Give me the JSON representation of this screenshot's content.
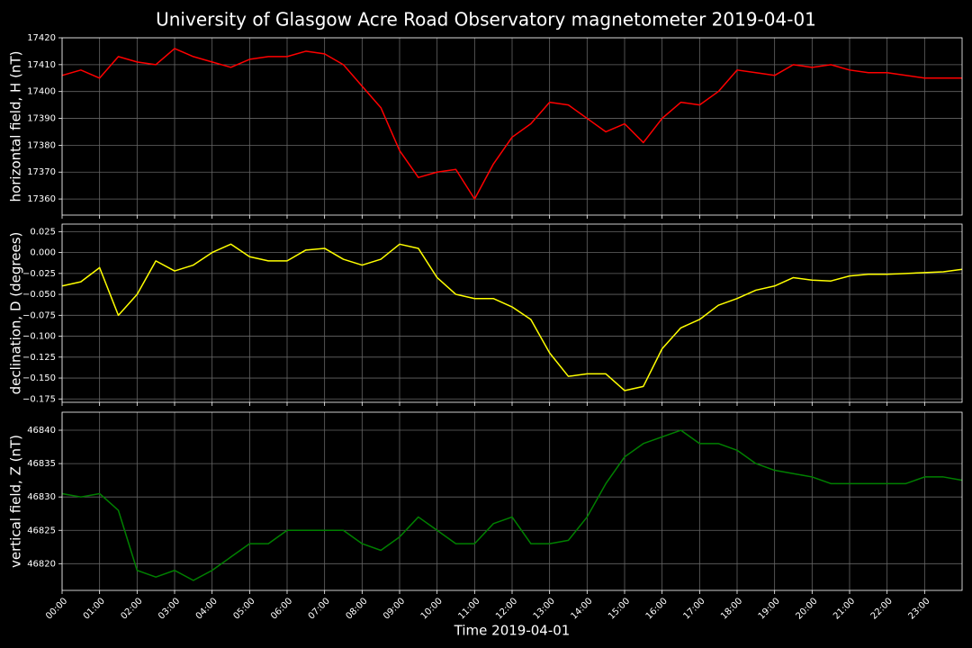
{
  "title": "University of Glasgow Acre Road Observatory magnetometer 2019-04-01",
  "chart_data": [
    {
      "type": "line",
      "ylabel": "horizontal field, H (nT)",
      "color": "#ff0000",
      "grid": true,
      "x": [
        0,
        0.5,
        1,
        1.5,
        2,
        2.5,
        3,
        3.5,
        4,
        4.5,
        5,
        5.5,
        6,
        6.5,
        7,
        7.5,
        8,
        8.5,
        9,
        9.5,
        10,
        10.5,
        11,
        11.5,
        12,
        12.5,
        13,
        13.5,
        14,
        14.5,
        15,
        15.5,
        16,
        16.5,
        17,
        17.5,
        18,
        18.5,
        19,
        19.5,
        20,
        20.5,
        21,
        21.5,
        22,
        22.5,
        23,
        23.5,
        24
      ],
      "values": [
        17406,
        17408,
        17405,
        17413,
        17411,
        17410,
        17416,
        17413,
        17411,
        17409,
        17412,
        17413,
        17413,
        17415,
        17414,
        17410,
        17402,
        17394,
        17378,
        17368,
        17370,
        17371,
        17360,
        17373,
        17383,
        17388,
        17396,
        17395,
        17390,
        17385,
        17388,
        17381,
        17390,
        17396,
        17395,
        17400,
        17408,
        17407,
        17406,
        17410,
        17409,
        17410,
        17408,
        17407,
        17407,
        17406,
        17405,
        17405,
        17405
      ],
      "xlim": [
        0,
        24
      ],
      "xticks": [
        0,
        1,
        2,
        3,
        4,
        5,
        6,
        7,
        8,
        9,
        10,
        11,
        12,
        13,
        14,
        15,
        16,
        17,
        18,
        19,
        20,
        21,
        22,
        23
      ],
      "ylim": [
        17354,
        17420
      ],
      "yticks": [
        17360,
        17370,
        17380,
        17390,
        17400,
        17410,
        17420
      ]
    },
    {
      "type": "line",
      "ylabel": "declination, D (degrees)",
      "color": "#ffff00",
      "grid": true,
      "x": [
        0,
        0.5,
        1,
        1.5,
        2,
        2.5,
        3,
        3.5,
        4,
        4.5,
        5,
        5.5,
        6,
        6.5,
        7,
        7.5,
        8,
        8.5,
        9,
        9.5,
        10,
        10.5,
        11,
        11.5,
        12,
        12.5,
        13,
        13.5,
        14,
        14.5,
        15,
        15.5,
        16,
        16.5,
        17,
        17.5,
        18,
        18.5,
        19,
        19.5,
        20,
        20.5,
        21,
        21.5,
        22,
        22.5,
        23,
        23.5,
        24
      ],
      "values": [
        -0.04,
        -0.035,
        -0.018,
        -0.075,
        -0.05,
        -0.01,
        -0.022,
        -0.015,
        0.0,
        0.01,
        -0.005,
        -0.01,
        -0.01,
        0.003,
        0.005,
        -0.008,
        -0.015,
        -0.008,
        0.01,
        0.005,
        -0.03,
        -0.05,
        -0.055,
        -0.055,
        -0.065,
        -0.08,
        -0.12,
        -0.148,
        -0.145,
        -0.145,
        -0.165,
        -0.16,
        -0.115,
        -0.09,
        -0.08,
        -0.063,
        -0.055,
        -0.045,
        -0.04,
        -0.03,
        -0.033,
        -0.034,
        -0.028,
        -0.026,
        -0.026,
        -0.025,
        -0.024,
        -0.023,
        -0.02
      ],
      "xlim": [
        0,
        24
      ],
      "xticks": [
        0,
        1,
        2,
        3,
        4,
        5,
        6,
        7,
        8,
        9,
        10,
        11,
        12,
        13,
        14,
        15,
        16,
        17,
        18,
        19,
        20,
        21,
        22,
        23
      ],
      "ylim": [
        -0.179,
        0.034
      ],
      "yticks": [
        0.025,
        {
          "value": 0,
          "label": "0.000"
        },
        {
          "value": -0.025,
          "label": "−0.025"
        },
        {
          "value": -0.05,
          "label": "−0.050"
        },
        {
          "value": -0.075,
          "label": "−0.075"
        },
        {
          "value": -0.1,
          "label": "−0.100"
        },
        {
          "value": -0.125,
          "label": "−0.125"
        },
        {
          "value": -0.15,
          "label": "−0.150"
        },
        {
          "value": -0.175,
          "label": "−0.175"
        }
      ]
    },
    {
      "type": "line",
      "ylabel": "vertical field, Z (nT)",
      "xlabel": "Time 2019-04-01",
      "color": "#008000",
      "grid": true,
      "x": [
        0,
        0.5,
        1,
        1.5,
        2,
        2.5,
        3,
        3.5,
        4,
        4.5,
        5,
        5.5,
        6,
        6.5,
        7,
        7.5,
        8,
        8.5,
        9,
        9.5,
        10,
        10.5,
        11,
        11.5,
        12,
        12.5,
        13,
        13.5,
        14,
        14.5,
        15,
        15.5,
        16,
        16.5,
        17,
        17.5,
        18,
        18.5,
        19,
        19.5,
        20,
        20.5,
        21,
        21.5,
        22,
        22.5,
        23,
        23.5,
        24
      ],
      "values": [
        46830.5,
        46830,
        46830.5,
        46828,
        46819,
        46818,
        46819,
        46817.5,
        46819,
        46821,
        46823,
        46823,
        46825,
        46825,
        46825,
        46825,
        46823,
        46822,
        46824,
        46827,
        46825,
        46823,
        46823,
        46826,
        46827,
        46823,
        46823,
        46823.5,
        46827,
        46832,
        46836,
        46838,
        46839,
        46840,
        46838,
        46838,
        46837,
        46835,
        46834,
        46833.5,
        46833,
        46832,
        46832,
        46832,
        46832,
        46832,
        46833,
        46833,
        46832.5
      ],
      "xlim": [
        0,
        24
      ],
      "xticks": [
        {
          "value": 0,
          "label": "00:00"
        },
        {
          "value": 1,
          "label": "01:00"
        },
        {
          "value": 2,
          "label": "02:00"
        },
        {
          "value": 3,
          "label": "03:00"
        },
        {
          "value": 4,
          "label": "04:00"
        },
        {
          "value": 5,
          "label": "05:00"
        },
        {
          "value": 6,
          "label": "06:00"
        },
        {
          "value": 7,
          "label": "07:00"
        },
        {
          "value": 8,
          "label": "08:00"
        },
        {
          "value": 9,
          "label": "09:00"
        },
        {
          "value": 10,
          "label": "10:00"
        },
        {
          "value": 11,
          "label": "11:00"
        },
        {
          "value": 12,
          "label": "12:00"
        },
        {
          "value": 13,
          "label": "13:00"
        },
        {
          "value": 14,
          "label": "14:00"
        },
        {
          "value": 15,
          "label": "15:00"
        },
        {
          "value": 16,
          "label": "16:00"
        },
        {
          "value": 17,
          "label": "17:00"
        },
        {
          "value": 18,
          "label": "18:00"
        },
        {
          "value": 19,
          "label": "19:00"
        },
        {
          "value": 20,
          "label": "20:00"
        },
        {
          "value": 21,
          "label": "21:00"
        },
        {
          "value": 22,
          "label": "22:00"
        },
        {
          "value": 23,
          "label": "23:00"
        }
      ],
      "ylim": [
        46816,
        46842.7
      ],
      "yticks": [
        46820,
        46825,
        46830,
        46835,
        46840
      ]
    }
  ]
}
